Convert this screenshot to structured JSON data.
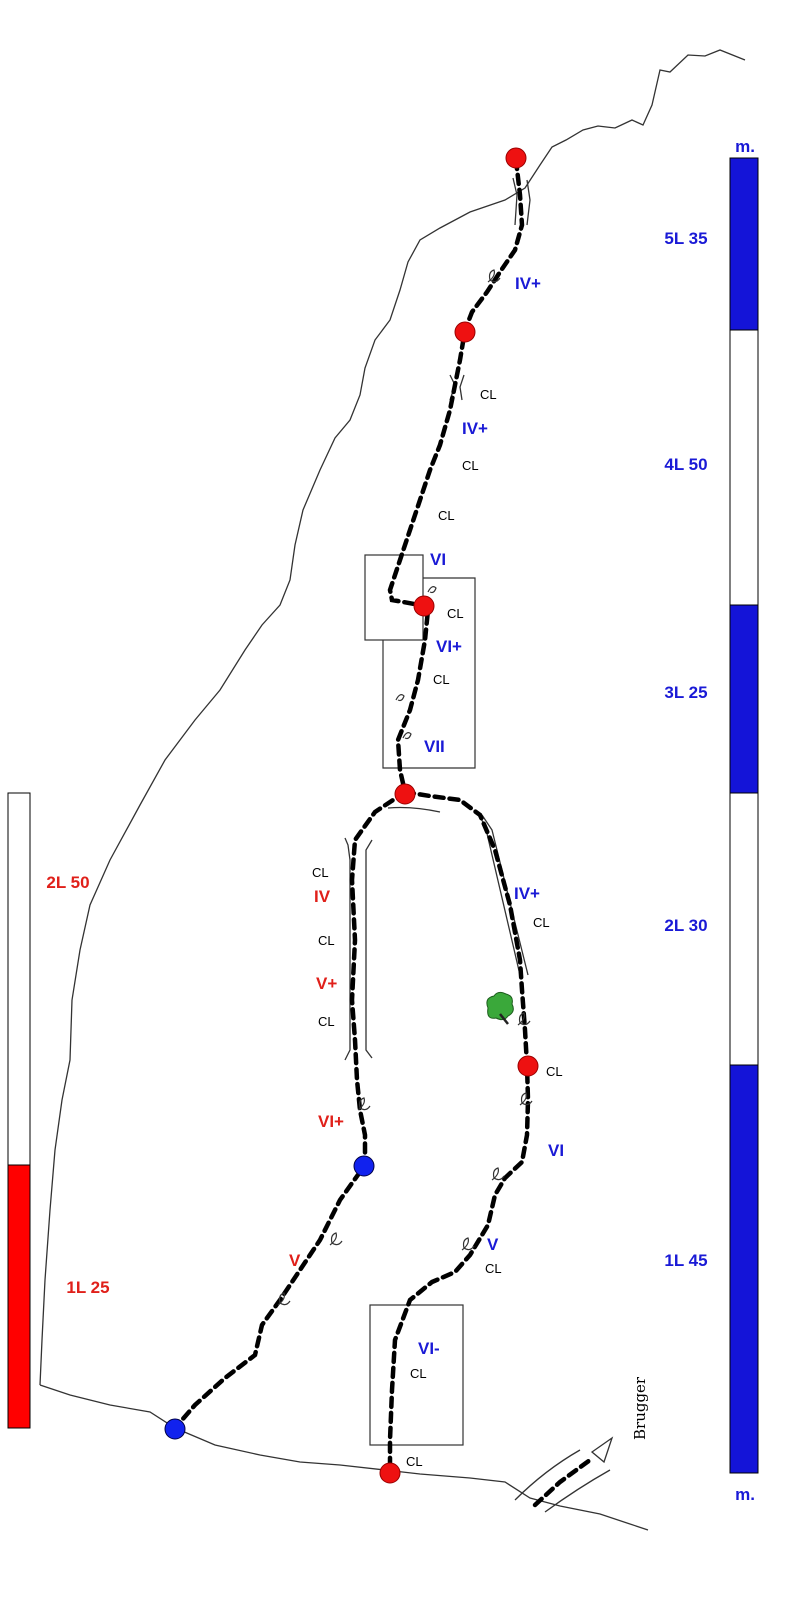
{
  "scale_unit": "m.",
  "right_scale": {
    "pitches": [
      {
        "label": "5L 35",
        "color": "#1414d8"
      },
      {
        "label": "4L 50",
        "color": "#ffffff"
      },
      {
        "label": "3L 25",
        "color": "#1414d8"
      },
      {
        "label": "2L 30",
        "color": "#ffffff"
      },
      {
        "label": "1L 45",
        "color": "#1414d8"
      }
    ]
  },
  "left_scale": {
    "pitches": [
      {
        "label": "2L 50",
        "color": "#ffffff"
      },
      {
        "label": "1L 25",
        "color": "#ff0000"
      }
    ]
  },
  "grades": {
    "p5": "IV+",
    "p4": "IV+",
    "p3_vi": "VI",
    "p3_viplus": "VI+",
    "p3_vii": "VII",
    "right_ivplus": "IV+",
    "right_vi": "VI",
    "right_v": "V",
    "right_vimin": "VI-",
    "left_iv": "IV",
    "left_vplus": "V+",
    "left_viplus": "VI+",
    "left_v": "V"
  },
  "cl_label": "CL",
  "approach_label": "Brugger"
}
